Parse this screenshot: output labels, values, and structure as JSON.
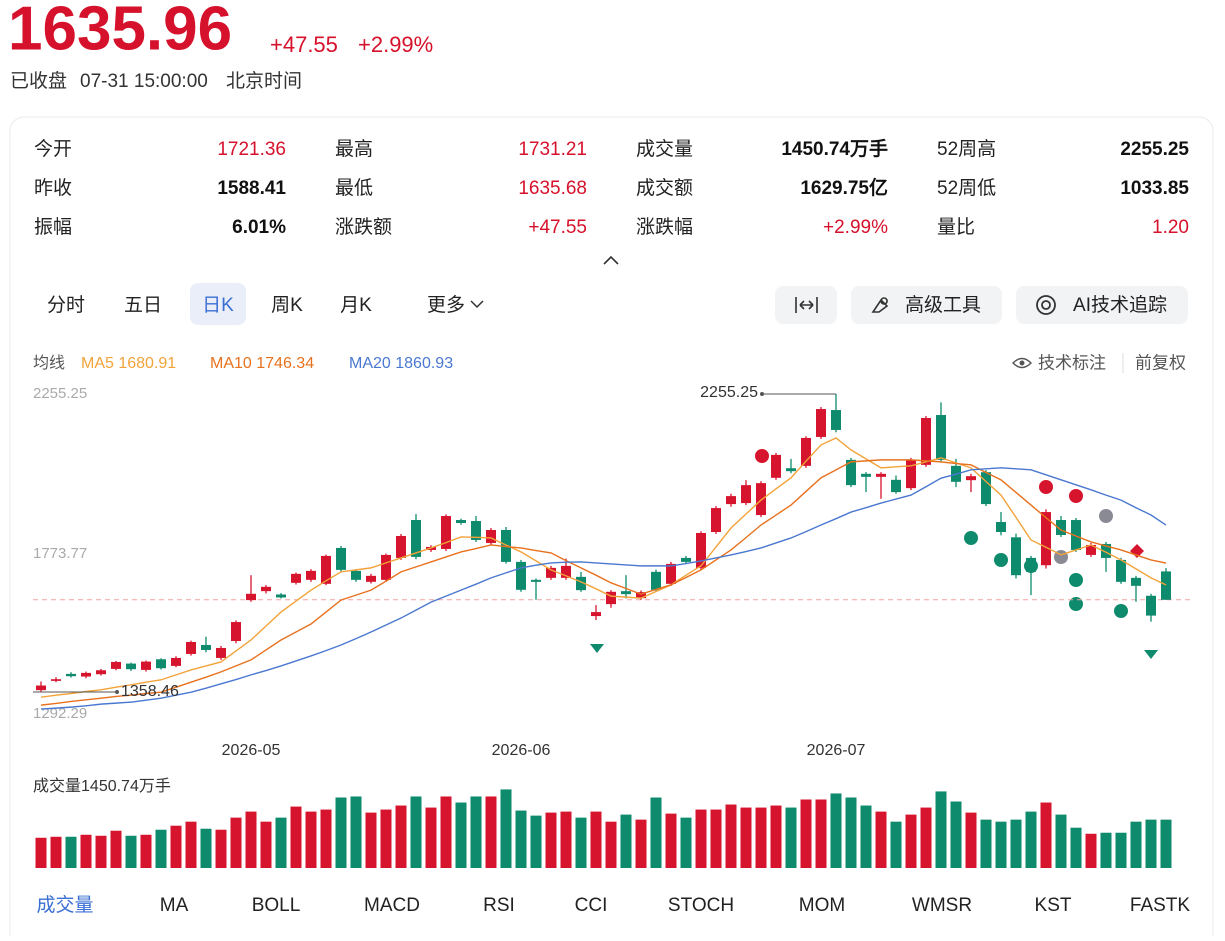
{
  "quote": {
    "price": "1635.96",
    "change": "+47.55",
    "change_pct": "+2.99%",
    "status": "已收盘",
    "time": "07-31 15:00:00",
    "timezone": "北京时间"
  },
  "stats": [
    {
      "label": "今开",
      "value": "1721.36"
    },
    {
      "label": "最高",
      "value": "1731.21"
    },
    {
      "label": "成交量",
      "value": "1450.74万手"
    },
    {
      "label": "52周高",
      "value": "2255.25"
    },
    {
      "label": "昨收",
      "value": "1588.41"
    },
    {
      "label": "最低",
      "value": "1635.68"
    },
    {
      "label": "成交额",
      "value": "1629.75亿"
    },
    {
      "label": "52周低",
      "value": "1033.85"
    },
    {
      "label": "振幅",
      "value": "6.01%"
    },
    {
      "label": "涨跌额",
      "value": "+47.55"
    },
    {
      "label": "涨跌幅",
      "value": "+2.99%"
    },
    {
      "label": "量比",
      "value": "1.20"
    }
  ],
  "period_tabs": [
    "分时",
    "五日",
    "日K",
    "周K",
    "月K",
    "更多"
  ],
  "tools": [
    "高级工具",
    "AI技术追踪"
  ],
  "legend_label": "均线",
  "chart_options": [
    "技术标注",
    "前复权"
  ],
  "indicator_tabs": [
    "成交量",
    "MA",
    "BOLL",
    "MACD",
    "RSI",
    "CCI",
    "STOCH",
    "MOM",
    "WMSR",
    "KST",
    "FASTK"
  ],
  "chart_data": [
    {
      "type": "candlestick",
      "categories": [
        null,
        null,
        null,
        null,
        null,
        null,
        null,
        null,
        null,
        null,
        null,
        null,
        null,
        null,
        "2026-05",
        null,
        null,
        null,
        null,
        null,
        null,
        null,
        null,
        null,
        null,
        null,
        null,
        null,
        null,
        null,
        null,
        null,
        "2026-06",
        null,
        null,
        null,
        null,
        null,
        null,
        null,
        null,
        null,
        null,
        null,
        null,
        null,
        null,
        null,
        null,
        null,
        null,
        null,
        null,
        "2026-07",
        null,
        null,
        null,
        null,
        null,
        null,
        null,
        null,
        null,
        null,
        null,
        null,
        null,
        null,
        null,
        null,
        null,
        null,
        null,
        null,
        null,
        null
      ],
      "open": [
        1364,
        1392,
        1413,
        1405,
        1412,
        1428,
        1444,
        1425,
        1457,
        1437,
        1473,
        1500,
        1461,
        1512,
        1635,
        1662,
        1652,
        1687,
        1696,
        1684,
        1792,
        1723,
        1690,
        1696,
        1762,
        1876,
        1786,
        1789,
        1876,
        1873,
        1807,
        1846,
        1750,
        1696,
        1702,
        1702,
        1705,
        1587,
        1623,
        1662,
        1641,
        1720,
        1684,
        1762,
        1732,
        1840,
        1924,
        1927,
        1891,
        2003,
        2032,
        2039,
        2126,
        2207,
        2057,
        2015,
        2006,
        1997,
        1972,
        2042,
        2192,
        2039,
        1996,
        2020,
        1870,
        1824,
        1762,
        1740,
        1876,
        1876,
        1771,
        1804,
        1756,
        1702,
        1648,
        1721.36
      ],
      "high": [
        1390,
        1403,
        1418,
        1420,
        1428,
        1452,
        1447,
        1453,
        1460,
        1466,
        1513,
        1525,
        1497,
        1574,
        1710,
        1680,
        1656,
        1718,
        1728,
        1772,
        1798,
        1728,
        1714,
        1775,
        1834,
        1894,
        1800,
        1893,
        1880,
        1888,
        1852,
        1855,
        1756,
        1700,
        1738,
        1760,
        1720,
        1620,
        1665,
        1710,
        1664,
        1727,
        1750,
        1768,
        1842,
        1918,
        1955,
        1996,
        1993,
        2078,
        2060,
        2128,
        2216,
        2255.25,
        2063,
        2020,
        2020,
        2010,
        2063,
        2189,
        2230,
        2060,
        2015,
        2026,
        1900,
        1835,
        1768,
        1908,
        1888,
        1882,
        1807,
        1810,
        1762,
        1708,
        1654,
        1731.21
      ],
      "low": [
        1358.46,
        1388,
        1402,
        1400,
        1408,
        1424,
        1422,
        1420,
        1426,
        1433,
        1468,
        1478,
        1455,
        1505,
        1630,
        1655,
        1640,
        1682,
        1690,
        1680,
        1720,
        1690,
        1685,
        1690,
        1756,
        1758,
        1780,
        1783,
        1862,
        1810,
        1800,
        1745,
        1660,
        1636,
        1696,
        1696,
        1660,
        1575,
        1612,
        1640,
        1636,
        1660,
        1678,
        1744,
        1726,
        1834,
        1916,
        1921,
        1885,
        1997,
        2017,
        2033,
        2120,
        2140,
        1975,
        1960,
        1940,
        1955,
        1966,
        2036,
        2051,
        1975,
        1960,
        1918,
        1830,
        1700,
        1650,
        1730,
        1825,
        1780,
        1765,
        1720,
        1684,
        1630,
        1570,
        1635.68
      ],
      "close": [
        1378,
        1397,
        1406,
        1416,
        1424,
        1449,
        1427,
        1450,
        1430,
        1461,
        1509,
        1485,
        1491,
        1569,
        1654,
        1675,
        1643,
        1714,
        1723,
        1768,
        1726,
        1696,
        1708,
        1771,
        1828,
        1765,
        1795,
        1888,
        1867,
        1816,
        1846,
        1750,
        1666,
        1690,
        1732,
        1738,
        1665,
        1599,
        1660,
        1653,
        1659,
        1666,
        1744,
        1750,
        1837,
        1912,
        1948,
        1981,
        1987,
        2072,
        2023,
        2123,
        2210,
        2147,
        1981,
        2006,
        2015,
        1960,
        2057,
        2183,
        2057,
        1991,
        2008,
        1924,
        1840,
        1710,
        1720,
        1900,
        1831,
        1786,
        1801,
        1762,
        1690,
        1678,
        1588.41,
        1635.96
      ],
      "up_color": "#d7142e",
      "down_color": "#0e8a6c",
      "ylim": [
        1292.29,
        2255.25
      ],
      "yticks": [
        1292.29,
        1773.77,
        2255.25
      ],
      "series": [
        {
          "name": "MA5",
          "color": "#f2a33a",
          "values": [
            1343,
            1349,
            1354,
            1360,
            1365,
            1373,
            1380,
            1388,
            1395,
            1410,
            1425,
            1437,
            1449,
            1482,
            1515,
            1557,
            1599,
            1632,
            1665,
            1693,
            1720,
            1726,
            1732,
            1747,
            1762,
            1777,
            1792,
            1808,
            1825,
            1824,
            1822,
            1801,
            1780,
            1753,
            1726,
            1708,
            1690,
            1669,
            1647,
            1644,
            1641,
            1661,
            1681,
            1710,
            1738,
            1795,
            1852,
            1894,
            1936,
            1970,
            2003,
            2053,
            2102,
            2123,
            2087,
            2060,
            2033,
            2036,
            2039,
            2051,
            2063,
            2048,
            2033,
            1992,
            1951,
            1884,
            1816,
            1794,
            1771,
            1786,
            1801,
            1779,
            1756,
            1729,
            1702,
            1680.91
          ]
        },
        {
          "name": "MA10",
          "color": "#e8711e",
          "values": [
            1319,
            1324,
            1330,
            1335,
            1340,
            1345,
            1349,
            1354,
            1358,
            1373,
            1388,
            1403,
            1419,
            1437,
            1455,
            1485,
            1515,
            1539,
            1563,
            1599,
            1635,
            1650,
            1665,
            1692,
            1720,
            1735,
            1750,
            1765,
            1780,
            1790,
            1801,
            1796,
            1792,
            1784,
            1777,
            1754,
            1732,
            1710,
            1687,
            1670,
            1653,
            1667,
            1681,
            1703,
            1726,
            1756,
            1786,
            1823,
            1861,
            1891,
            1921,
            1962,
            2003,
            2027,
            2051,
            2054,
            2057,
            2057,
            2057,
            2054,
            2051,
            2046,
            2042,
            2019,
            1997,
            1959,
            1921,
            1883,
            1846,
            1828,
            1810,
            1798,
            1786,
            1771,
            1756,
            1746.34
          ]
        },
        {
          "name": "MA20",
          "color": "#4a78d0",
          "values": [
            1307,
            1310,
            1313,
            1317,
            1322,
            1325,
            1328,
            1334,
            1340,
            1349,
            1358,
            1370,
            1383,
            1396,
            1410,
            1423,
            1437,
            1452,
            1467,
            1483,
            1500,
            1519,
            1539,
            1560,
            1581,
            1605,
            1629,
            1647,
            1665,
            1683,
            1702,
            1717,
            1732,
            1740,
            1747,
            1749,
            1750,
            1747,
            1744,
            1741,
            1738,
            1738,
            1738,
            1745,
            1753,
            1762,
            1771,
            1781,
            1792,
            1807,
            1822,
            1841,
            1861,
            1880,
            1900,
            1913,
            1927,
            1939,
            1951,
            1976,
            2002,
            2014,
            2027,
            2030,
            2033,
            2030,
            2027,
            2012,
            1997,
            1982,
            1967,
            1951,
            1936,
            1913,
            1891,
            1860.93
          ]
        }
      ]
    },
    {
      "type": "bar",
      "title": "成交量",
      "unit": "万手",
      "ylim": [
        0,
        2400
      ],
      "values": [
        907,
        937,
        937,
        997,
        967,
        1118,
        967,
        997,
        1148,
        1269,
        1390,
        1178,
        1148,
        1511,
        1692,
        1390,
        1511,
        1843,
        1692,
        1753,
        2115,
        2146,
        1662,
        1753,
        1874,
        2146,
        1813,
        2146,
        1964,
        2146,
        2146,
        2357,
        1723,
        1571,
        1662,
        1692,
        1511,
        1692,
        1390,
        1602,
        1451,
        2115,
        1632,
        1511,
        1753,
        1753,
        1904,
        1813,
        1813,
        1874,
        1813,
        2055,
        2055,
        2236,
        2115,
        1874,
        1692,
        1390,
        1602,
        1813,
        2297,
        1995,
        1662,
        1451,
        1390,
        1451,
        1692,
        1964,
        1602,
        1209,
        1027,
        1058,
        1058,
        1390,
        1451,
        1450.74
      ]
    }
  ]
}
